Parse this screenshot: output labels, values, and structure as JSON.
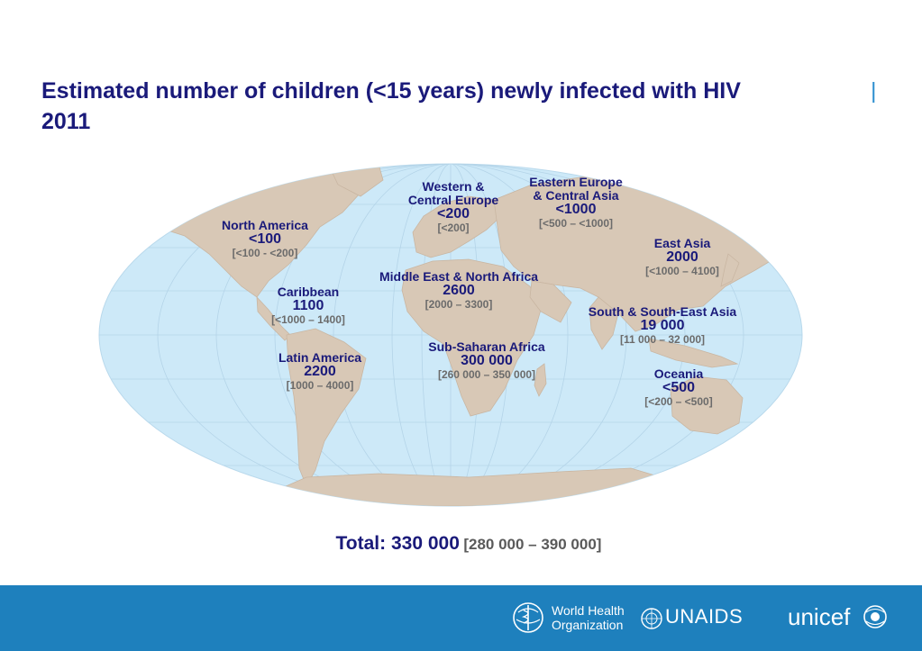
{
  "title": {
    "line1": "Estimated number of children (<15 years) newly infected with HIV",
    "separator": "|",
    "line2": "2011"
  },
  "regions": [
    {
      "name_lines": [
        "North America"
      ],
      "value": "<100",
      "range": "[<100 - <200]"
    },
    {
      "name_lines": [
        "Western &",
        "Central Europe"
      ],
      "value": "<200",
      "range": "[<200]"
    },
    {
      "name_lines": [
        "Eastern Europe",
        "& Central Asia"
      ],
      "value": "<1000",
      "range": "[<500 – <1000]"
    },
    {
      "name_lines": [
        "East Asia"
      ],
      "value": "2000",
      "range": "[<1000 – 4100]"
    },
    {
      "name_lines": [
        "Caribbean"
      ],
      "value": "1100",
      "range": "[<1000 – 1400]"
    },
    {
      "name_lines": [
        "Middle East & North Africa"
      ],
      "value": "2600",
      "range": "[2000 – 3300]"
    },
    {
      "name_lines": [
        "South & South-East Asia"
      ],
      "value": "19 000",
      "range": "[11 000 – 32 000]"
    },
    {
      "name_lines": [
        "Sub-Saharan Africa"
      ],
      "value": "300 000",
      "range": "[260 000 – 350 000]"
    },
    {
      "name_lines": [
        "Latin America"
      ],
      "value": "2200",
      "range": "[1000 – 4000]"
    },
    {
      "name_lines": [
        "Oceania"
      ],
      "value": "<500",
      "range": "[<200 – <500]"
    }
  ],
  "total": {
    "label": "Total: 330 000",
    "range": "[280 000 – 390 000]"
  },
  "logos": {
    "who": {
      "line1": "World Health",
      "line2": "Organization",
      "icon": "who-emblem-icon"
    },
    "unaids": {
      "text": "UNAIDS",
      "icon": "un-emblem-icon"
    },
    "unicef": {
      "text": "unicef",
      "icon": "unicef-emblem-icon"
    }
  },
  "colors": {
    "title": "#1a1a7a",
    "ocean": "#cde9f8",
    "land": "#d8c8b6",
    "range_text": "#6b6b6b",
    "footer": "#1e80bd",
    "separator": "#2e8fd0"
  }
}
